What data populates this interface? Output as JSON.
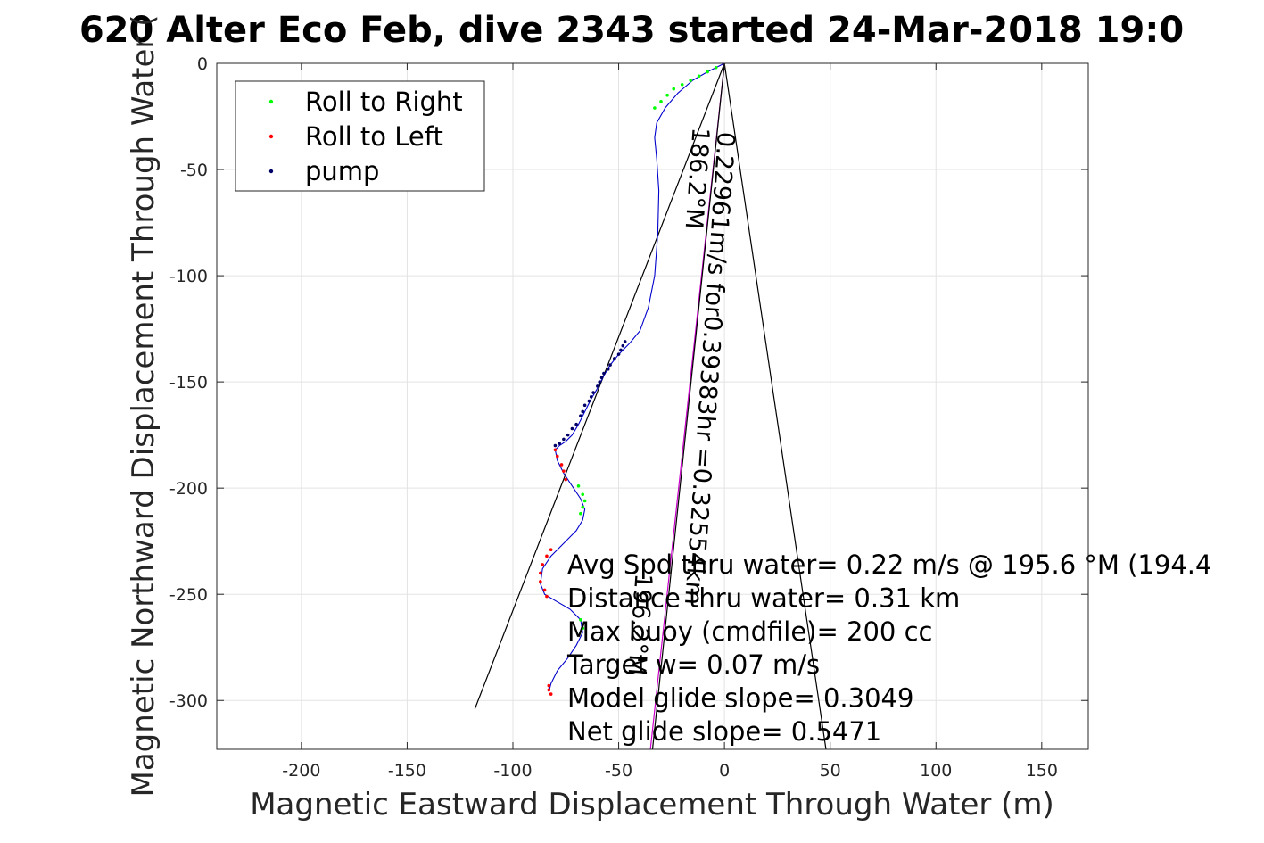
{
  "chart_data": {
    "type": "line",
    "title": "620 Alter Eco Feb, dive 2343 started 24-Mar-2018 19:0",
    "xlabel": "Magnetic Eastward Displacement Through Water (m)",
    "ylabel": "Magnetic Northward Displacement Through Water (",
    "xlim": [
      -240,
      172
    ],
    "ylim": [
      -323,
      0
    ],
    "x_ticks": [
      -200,
      -150,
      -100,
      -50,
      0,
      50,
      100,
      150
    ],
    "x_tick_labels": [
      "-200",
      "-150",
      "-100",
      "-50",
      "0",
      "50",
      "100",
      "150"
    ],
    "y_ticks": [
      0,
      -50,
      -100,
      -150,
      -200,
      -250,
      -300
    ],
    "y_tick_labels": [
      "0",
      "-50",
      "-100",
      "-150",
      "-200",
      "-250",
      "-300"
    ],
    "grid": true,
    "legend": {
      "placement": "top-left",
      "entries": [
        {
          "label": "Roll to Right",
          "color": "#00ff00"
        },
        {
          "label": "Roll to Left",
          "color": "#ff0000"
        },
        {
          "label": "pump",
          "color": "#000066"
        }
      ]
    },
    "track": {
      "color": "#0000cc",
      "x": [
        0,
        -8,
        -15,
        -22,
        -28,
        -32,
        -33,
        -32,
        -31,
        -31.5,
        -33,
        -36,
        -40,
        -45,
        -50,
        -54,
        -57,
        -60,
        -63,
        -66,
        -69,
        -72,
        -75,
        -78,
        -80,
        -79,
        -76,
        -72,
        -68,
        -66,
        -67,
        -70,
        -76,
        -82,
        -86,
        -87,
        -85,
        -80,
        -73,
        -68,
        -67,
        -70,
        -74,
        -79,
        -82,
        -83
      ],
      "y": [
        0,
        -4,
        -8,
        -14,
        -21,
        -28,
        -35,
        -45,
        -60,
        -80,
        -100,
        -115,
        -126,
        -132,
        -137,
        -142,
        -147,
        -153,
        -158,
        -164,
        -170,
        -175,
        -178,
        -180,
        -182,
        -187,
        -193,
        -199,
        -205,
        -210,
        -215,
        -220,
        -226,
        -232,
        -238,
        -245,
        -250,
        -253,
        -257,
        -262,
        -268,
        -274,
        -280,
        -286,
        -292,
        -296
      ]
    },
    "marker_groups": [
      {
        "name": "Roll to Right",
        "color": "#00ff00",
        "x": [
          -33,
          -30,
          -27,
          -24,
          -20,
          -16,
          -12,
          -8,
          -4,
          -69,
          -67,
          -66,
          -67,
          -68,
          -68,
          -67
        ],
        "y": [
          -21,
          -18,
          -15,
          -12,
          -10,
          -8,
          -6,
          -4,
          -2,
          -199,
          -203,
          -206,
          -209,
          -212,
          -262,
          -266
        ]
      },
      {
        "name": "Roll to Left",
        "color": "#ff0000",
        "x": [
          -80,
          -79,
          -77,
          -76,
          -75,
          -82,
          -84,
          -86,
          -87,
          -87,
          -85,
          -84,
          -83,
          -83,
          -82
        ],
        "y": [
          -182,
          -185,
          -189,
          -192,
          -196,
          -229,
          -232,
          -236,
          -240,
          -244,
          -248,
          -251,
          -293,
          -295,
          -297
        ]
      },
      {
        "name": "pump",
        "color": "#000066",
        "x": [
          -52,
          -54,
          -55,
          -57,
          -58,
          -59,
          -60,
          -62,
          -63,
          -64,
          -66,
          -67,
          -68,
          -70,
          -72,
          -74,
          -76,
          -78,
          -80,
          -50,
          -49,
          -48,
          -47
        ],
        "y": [
          -139,
          -142,
          -144,
          -146,
          -148,
          -150,
          -152,
          -155,
          -157,
          -159,
          -161,
          -164,
          -166,
          -170,
          -172,
          -175,
          -177,
          -179,
          -180,
          -137,
          -135,
          -133,
          -131
        ]
      }
    ],
    "lines": [
      {
        "name": "black-line-a",
        "color": "#000000",
        "x": [
          0,
          -118
        ],
        "y": [
          0,
          -304
        ]
      },
      {
        "name": "black-line-b",
        "color": "#000000",
        "x": [
          0,
          48
        ],
        "y": [
          0,
          -323
        ]
      },
      {
        "name": "magenta-line",
        "color": "#cc00cc",
        "x": [
          0,
          -35
        ],
        "y": [
          0,
          -323
        ]
      },
      {
        "name": "black-line-c",
        "color": "#000000",
        "x": [
          0,
          -34
        ],
        "y": [
          0,
          -323
        ]
      }
    ],
    "rotated_annotations": [
      {
        "text": "0.22961m/s for0.39383hr =0.32554km",
        "x": -3,
        "y": -32,
        "angle": 94
      },
      {
        "text": "186.2°M",
        "x": -15,
        "y": -30,
        "angle": 94
      },
      {
        "text": "196.2°M",
        "x": -42,
        "y": -240,
        "angle": 94
      }
    ],
    "annotations": [
      "Avg Spd thru water=  0.22 m/s @ 195.6 °M (194.4",
      "Distance thru water=  0.31 km",
      "Max buoy (cmdfile)= 200 cc",
      "Target w= 0.07 m/s",
      "Model glide slope= 0.3049",
      "Net glide slope= 0.5471"
    ]
  }
}
